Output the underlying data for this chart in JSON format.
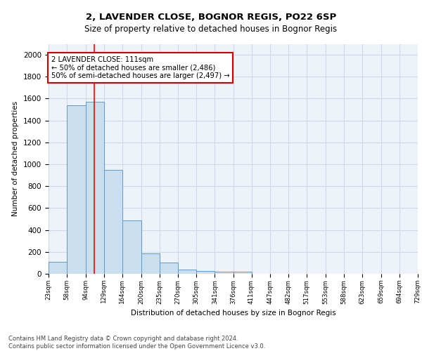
{
  "title_line1": "2, LAVENDER CLOSE, BOGNOR REGIS, PO22 6SP",
  "title_line2": "Size of property relative to detached houses in Bognor Regis",
  "xlabel": "Distribution of detached houses by size in Bognor Regis",
  "ylabel": "Number of detached properties",
  "bar_edges": [
    23,
    58,
    94,
    129,
    164,
    200,
    235,
    270,
    305,
    341,
    376,
    411,
    447,
    482,
    517,
    553,
    588,
    623,
    659,
    694,
    729
  ],
  "bar_heights": [
    110,
    1540,
    1570,
    950,
    490,
    185,
    100,
    40,
    28,
    18,
    18,
    0,
    0,
    0,
    0,
    0,
    0,
    0,
    0,
    0
  ],
  "bar_color": "#c9dff0",
  "bar_edge_color": "#5b9bd5",
  "red_line_x": 111,
  "annotation_text": "2 LAVENDER CLOSE: 111sqm\n← 50% of detached houses are smaller (2,486)\n50% of semi-detached houses are larger (2,497) →",
  "annotation_box_color": "#ffffff",
  "annotation_box_edge": "#cc0000",
  "grid_color": "#d0d8e8",
  "background_color": "#eef3fa",
  "ylim": [
    0,
    2100
  ],
  "yticks": [
    0,
    200,
    400,
    600,
    800,
    1000,
    1200,
    1400,
    1600,
    1800,
    2000
  ],
  "footer_line1": "Contains HM Land Registry data © Crown copyright and database right 2024.",
  "footer_line2": "Contains public sector information licensed under the Open Government Licence v3.0."
}
